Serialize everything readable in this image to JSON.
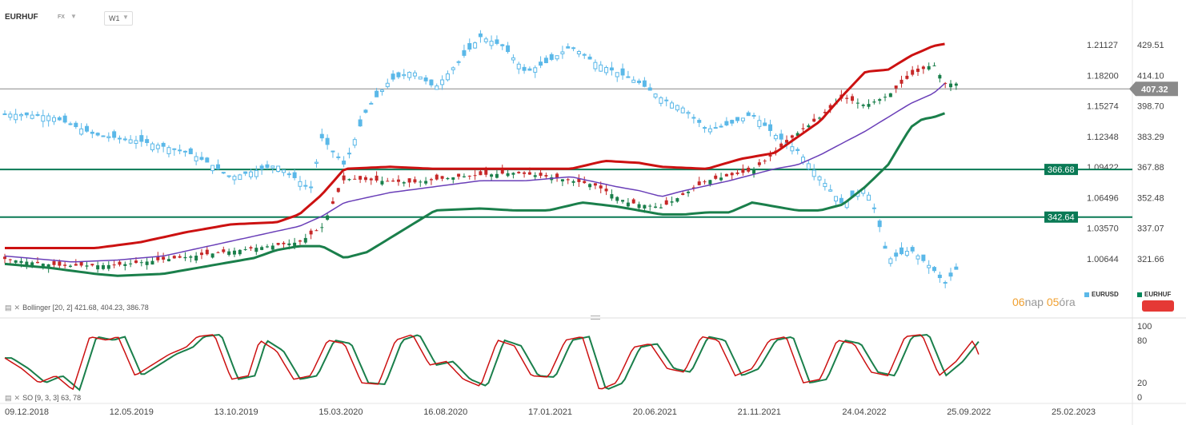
{
  "header": {
    "symbol": "EURHUF",
    "market": "FX",
    "timeframe": "W1",
    "dropdown_icon": "chevron-down-icon"
  },
  "chart_data": [
    {
      "type": "candlestick",
      "series": [
        {
          "name": "EURHUF",
          "color": "#00875a"
        },
        {
          "name": "EURUSD",
          "color": "#5bb8e8"
        }
      ],
      "x_tick_labels": [
        "09.12.2018",
        "12.05.2019",
        "13.10.2019",
        "15.03.2020",
        "16.08.2020",
        "17.01.2021",
        "20.06.2021",
        "21.11.2021",
        "24.04.2022",
        "25.09.2022",
        "25.02.2023"
      ],
      "y_left_ticks": [
        "1.21127",
        "1.18200",
        "1.15274",
        "1.12348",
        "1.09422",
        "1.06496",
        "1.03570",
        "1.00644"
      ],
      "y_right_ticks": [
        "429.51",
        "414.10",
        "398.70",
        "383.29",
        "367.88",
        "352.48",
        "337.07",
        "321.66"
      ],
      "right_axis_range": [
        306.26,
        444.92
      ],
      "left_axis_range": [
        0.97718,
        1.24053
      ],
      "current_price": "407.32",
      "horizontal_levels": [
        {
          "label": "366.68",
          "value": 366.68
        },
        {
          "label": "342.64",
          "value": 342.64
        }
      ],
      "eurhuf_anchors": [
        [
          0,
          321.5
        ],
        [
          0.05,
          318
        ],
        [
          0.1,
          318.5
        ],
        [
          0.16,
          322.5
        ],
        [
          0.22,
          327
        ],
        [
          0.26,
          330
        ],
        [
          0.28,
          337.5
        ],
        [
          0.3,
          362
        ],
        [
          0.33,
          361
        ],
        [
          0.36,
          360
        ],
        [
          0.4,
          363
        ],
        [
          0.45,
          365
        ],
        [
          0.48,
          363
        ],
        [
          0.52,
          359
        ],
        [
          0.55,
          350
        ],
        [
          0.58,
          347.5
        ],
        [
          0.62,
          361
        ],
        [
          0.66,
          366
        ],
        [
          0.68,
          375
        ],
        [
          0.7,
          385
        ],
        [
          0.72,
          393
        ],
        [
          0.74,
          403
        ],
        [
          0.76,
          399
        ],
        [
          0.78,
          404
        ],
        [
          0.8,
          414
        ],
        [
          0.82,
          420
        ],
        [
          0.83,
          410
        ]
      ],
      "eurusd_anchors": [
        [
          0,
          1.1452
        ],
        [
          0.04,
          1.1432
        ],
        [
          0.08,
          1.1252
        ],
        [
          0.12,
          1.119
        ],
        [
          0.16,
          1.1092
        ],
        [
          0.18,
          1.0982
        ],
        [
          0.2,
          1.0845
        ],
        [
          0.24,
          1.0962
        ],
        [
          0.27,
          1.0732
        ],
        [
          0.28,
          1.1222
        ],
        [
          0.3,
          1.0962
        ],
        [
          0.32,
          1.1502
        ],
        [
          0.34,
          1.1772
        ],
        [
          0.36,
          1.1862
        ],
        [
          0.38,
          1.1702
        ],
        [
          0.4,
          1.1942
        ],
        [
          0.42,
          1.2192
        ],
        [
          0.44,
          1.2102
        ],
        [
          0.46,
          1.1852
        ],
        [
          0.48,
          1.1952
        ],
        [
          0.5,
          1.2102
        ],
        [
          0.52,
          1.1952
        ],
        [
          0.54,
          1.1852
        ],
        [
          0.56,
          1.1752
        ],
        [
          0.58,
          1.1602
        ],
        [
          0.6,
          1.1502
        ],
        [
          0.62,
          1.1302
        ],
        [
          0.64,
          1.1352
        ],
        [
          0.66,
          1.1452
        ],
        [
          0.68,
          1.1252
        ],
        [
          0.7,
          1.1102
        ],
        [
          0.72,
          1.0842
        ],
        [
          0.74,
          1.0582
        ],
        [
          0.76,
          1.0752
        ],
        [
          0.77,
          1.0482
        ],
        [
          0.78,
          1.0052
        ],
        [
          0.8,
          1.0152
        ],
        [
          0.82,
          0.9962
        ],
        [
          0.83,
          0.9822
        ],
        [
          0.84,
          0.9962
        ]
      ]
    },
    {
      "type": "line",
      "name": "Bollinger",
      "params": "[20, 2] 421.68, 404.23, 386.78",
      "series": [
        {
          "name": "upper",
          "color": "#cc1111",
          "anchors": [
            [
              0,
              327
            ],
            [
              0.08,
              327
            ],
            [
              0.12,
              330
            ],
            [
              0.16,
              335
            ],
            [
              0.2,
              339
            ],
            [
              0.24,
              340
            ],
            [
              0.26,
              344
            ],
            [
              0.28,
              354
            ],
            [
              0.3,
              367
            ],
            [
              0.34,
              368
            ],
            [
              0.38,
              367
            ],
            [
              0.42,
              367
            ],
            [
              0.46,
              367
            ],
            [
              0.5,
              367
            ],
            [
              0.53,
              371
            ],
            [
              0.56,
              370
            ],
            [
              0.58,
              368
            ],
            [
              0.62,
              367
            ],
            [
              0.65,
              372
            ],
            [
              0.68,
              375
            ],
            [
              0.7,
              383
            ],
            [
              0.72,
              391
            ],
            [
              0.74,
              404
            ],
            [
              0.76,
              416
            ],
            [
              0.78,
              417
            ],
            [
              0.8,
              424
            ],
            [
              0.82,
              429
            ],
            [
              0.83,
              430
            ]
          ]
        },
        {
          "name": "middle",
          "color": "#6a3fb8",
          "anchors": [
            [
              0,
              323
            ],
            [
              0.06,
              320
            ],
            [
              0.1,
              321
            ],
            [
              0.14,
              323
            ],
            [
              0.18,
              328
            ],
            [
              0.22,
              333
            ],
            [
              0.26,
              338
            ],
            [
              0.28,
              343
            ],
            [
              0.3,
              350
            ],
            [
              0.34,
              355
            ],
            [
              0.38,
              358
            ],
            [
              0.42,
              361
            ],
            [
              0.46,
              361
            ],
            [
              0.5,
              363
            ],
            [
              0.54,
              358
            ],
            [
              0.56,
              356
            ],
            [
              0.58,
              353
            ],
            [
              0.6,
              356
            ],
            [
              0.64,
              361
            ],
            [
              0.66,
              364
            ],
            [
              0.68,
              367
            ],
            [
              0.7,
              369
            ],
            [
              0.72,
              374
            ],
            [
              0.74,
              380
            ],
            [
              0.76,
              386
            ],
            [
              0.78,
              393
            ],
            [
              0.8,
              400
            ],
            [
              0.82,
              405
            ],
            [
              0.83,
              410
            ]
          ]
        },
        {
          "name": "lower",
          "color": "#1a7f4b",
          "anchors": [
            [
              0,
              319
            ],
            [
              0.04,
              317
            ],
            [
              0.08,
              314
            ],
            [
              0.1,
              313
            ],
            [
              0.14,
              314
            ],
            [
              0.18,
              318
            ],
            [
              0.22,
              322
            ],
            [
              0.24,
              326
            ],
            [
              0.26,
              328
            ],
            [
              0.28,
              328
            ],
            [
              0.3,
              322
            ],
            [
              0.32,
              325
            ],
            [
              0.34,
              332
            ],
            [
              0.36,
              339
            ],
            [
              0.38,
              346
            ],
            [
              0.42,
              347
            ],
            [
              0.45,
              346
            ],
            [
              0.48,
              346
            ],
            [
              0.51,
              350
            ],
            [
              0.54,
              348
            ],
            [
              0.56,
              346
            ],
            [
              0.58,
              344
            ],
            [
              0.6,
              344
            ],
            [
              0.62,
              345
            ],
            [
              0.64,
              345
            ],
            [
              0.66,
              350
            ],
            [
              0.68,
              348
            ],
            [
              0.7,
              346
            ],
            [
              0.72,
              346
            ],
            [
              0.74,
              349
            ],
            [
              0.76,
              358
            ],
            [
              0.78,
              369
            ],
            [
              0.8,
              388
            ],
            [
              0.81,
              392
            ],
            [
              0.82,
              393
            ],
            [
              0.83,
              395
            ]
          ]
        }
      ]
    },
    {
      "type": "line",
      "name": "SO",
      "params": "[9, 3, 3] 63, 78",
      "ylim": [
        0,
        100
      ],
      "y_ticks": [
        "100",
        "80",
        "20",
        "0"
      ],
      "series": [
        {
          "name": "%K",
          "color": "#cc1111"
        },
        {
          "name": "%D",
          "color": "#1a7f4b"
        }
      ],
      "k_anchors": [
        [
          0,
          55
        ],
        [
          0.015,
          40
        ],
        [
          0.03,
          20
        ],
        [
          0.045,
          30
        ],
        [
          0.06,
          10
        ],
        [
          0.075,
          85
        ],
        [
          0.09,
          80
        ],
        [
          0.1,
          85
        ],
        [
          0.115,
          30
        ],
        [
          0.13,
          45
        ],
        [
          0.145,
          60
        ],
        [
          0.16,
          70
        ],
        [
          0.17,
          85
        ],
        [
          0.185,
          88
        ],
        [
          0.2,
          25
        ],
        [
          0.215,
          30
        ],
        [
          0.225,
          80
        ],
        [
          0.24,
          65
        ],
        [
          0.255,
          25
        ],
        [
          0.27,
          30
        ],
        [
          0.285,
          80
        ],
        [
          0.3,
          75
        ],
        [
          0.315,
          20
        ],
        [
          0.33,
          18
        ],
        [
          0.345,
          80
        ],
        [
          0.36,
          88
        ],
        [
          0.375,
          45
        ],
        [
          0.39,
          50
        ],
        [
          0.405,
          25
        ],
        [
          0.42,
          15
        ],
        [
          0.435,
          80
        ],
        [
          0.45,
          72
        ],
        [
          0.465,
          30
        ],
        [
          0.48,
          28
        ],
        [
          0.495,
          80
        ],
        [
          0.51,
          85
        ],
        [
          0.525,
          10
        ],
        [
          0.54,
          20
        ],
        [
          0.555,
          70
        ],
        [
          0.57,
          75
        ],
        [
          0.585,
          40
        ],
        [
          0.6,
          35
        ],
        [
          0.615,
          85
        ],
        [
          0.63,
          80
        ],
        [
          0.645,
          30
        ],
        [
          0.66,
          40
        ],
        [
          0.675,
          80
        ],
        [
          0.69,
          85
        ],
        [
          0.705,
          20
        ],
        [
          0.72,
          25
        ],
        [
          0.735,
          80
        ],
        [
          0.75,
          75
        ],
        [
          0.765,
          35
        ],
        [
          0.78,
          30
        ],
        [
          0.795,
          85
        ],
        [
          0.81,
          88
        ],
        [
          0.825,
          30
        ],
        [
          0.84,
          50
        ],
        [
          0.855,
          80
        ],
        [
          0.86,
          60
        ]
      ]
    }
  ],
  "legend": [
    {
      "label": "EURUSD",
      "color": "#5bb8e8"
    },
    {
      "label": "EURHUF",
      "color": "#00875a"
    }
  ],
  "countdown": {
    "days_num": "06",
    "days_label": "nap",
    "hours_num": "05",
    "hours_label": "óra"
  }
}
